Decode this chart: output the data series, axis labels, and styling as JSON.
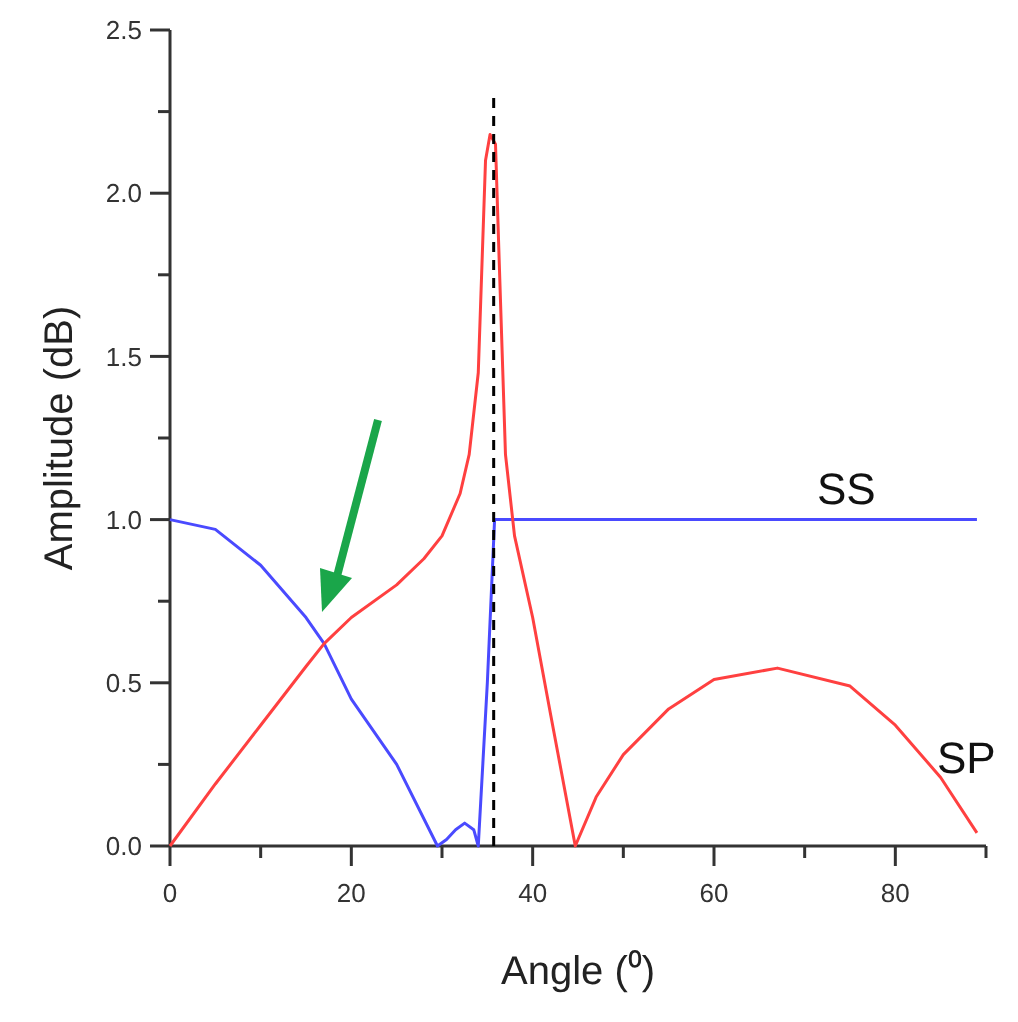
{
  "chart_data": {
    "type": "line",
    "xlabel": "Angle (⁰)",
    "ylabel": "Amplitude (dB)",
    "xlim": [
      0,
      90
    ],
    "ylim": [
      0,
      2.5
    ],
    "xticks": [
      0,
      {
        "value": 10,
        "label": null
      },
      20,
      {
        "value": 30,
        "label": null
      },
      40,
      {
        "value": 50,
        "label": null
      },
      60,
      {
        "value": 70,
        "label": null
      },
      80,
      {
        "value": 90,
        "label": null
      }
    ],
    "yticks": [
      {
        "value": 0,
        "label": "0.0"
      },
      {
        "value": 0.25,
        "label": null
      },
      {
        "value": 0.5,
        "label": "0.5"
      },
      {
        "value": 0.75,
        "label": null
      },
      {
        "value": 1,
        "label": "1.0"
      },
      {
        "value": 1.25,
        "label": null
      },
      {
        "value": 1.5,
        "label": "1.5"
      },
      {
        "value": 1.75,
        "label": null
      },
      {
        "value": 2,
        "label": "2.0"
      },
      {
        "value": 2.25,
        "label": null
      },
      {
        "value": 2.5,
        "label": "2.5"
      }
    ],
    "grid": false,
    "legend": false,
    "marker": "none",
    "line_style": "solid",
    "series": [
      {
        "name": "SS",
        "color": "#4a4aff",
        "x": [
          0,
          5,
          10,
          15,
          17,
          20,
          25,
          29.5,
          30.5,
          31.5,
          32.5,
          33.5,
          34,
          35,
          35.8,
          36,
          50,
          70,
          89
        ],
        "values": [
          1,
          0.97,
          0.86,
          0.7,
          0.62,
          0.45,
          0.25,
          0,
          0.02,
          0.05,
          0.07,
          0.05,
          0,
          0.5,
          1,
          1,
          1,
          1,
          1
        ]
      },
      {
        "name": "SP",
        "color": "#ff4040",
        "x": [
          0,
          5,
          10,
          15,
          17,
          20,
          25,
          28,
          30,
          32,
          33,
          34,
          34.8,
          35.3,
          35.9,
          36.3,
          37,
          38,
          40,
          42,
          44.7,
          47,
          50,
          55,
          60,
          67,
          75,
          80,
          85,
          89
        ],
        "values": [
          0,
          0.19,
          0.37,
          0.55,
          0.62,
          0.7,
          0.8,
          0.88,
          0.95,
          1.08,
          1.2,
          1.45,
          2.1,
          2.18,
          2.15,
          1.8,
          1.2,
          0.95,
          0.7,
          0.4,
          0,
          0.15,
          0.28,
          0.42,
          0.51,
          0.545,
          0.49,
          0.37,
          0.21,
          0.04
        ]
      }
    ],
    "ref_lines": [
      {
        "axis": "x",
        "value": 35.7,
        "color": "#000000",
        "line_style": "dashed"
      }
    ]
  }
}
